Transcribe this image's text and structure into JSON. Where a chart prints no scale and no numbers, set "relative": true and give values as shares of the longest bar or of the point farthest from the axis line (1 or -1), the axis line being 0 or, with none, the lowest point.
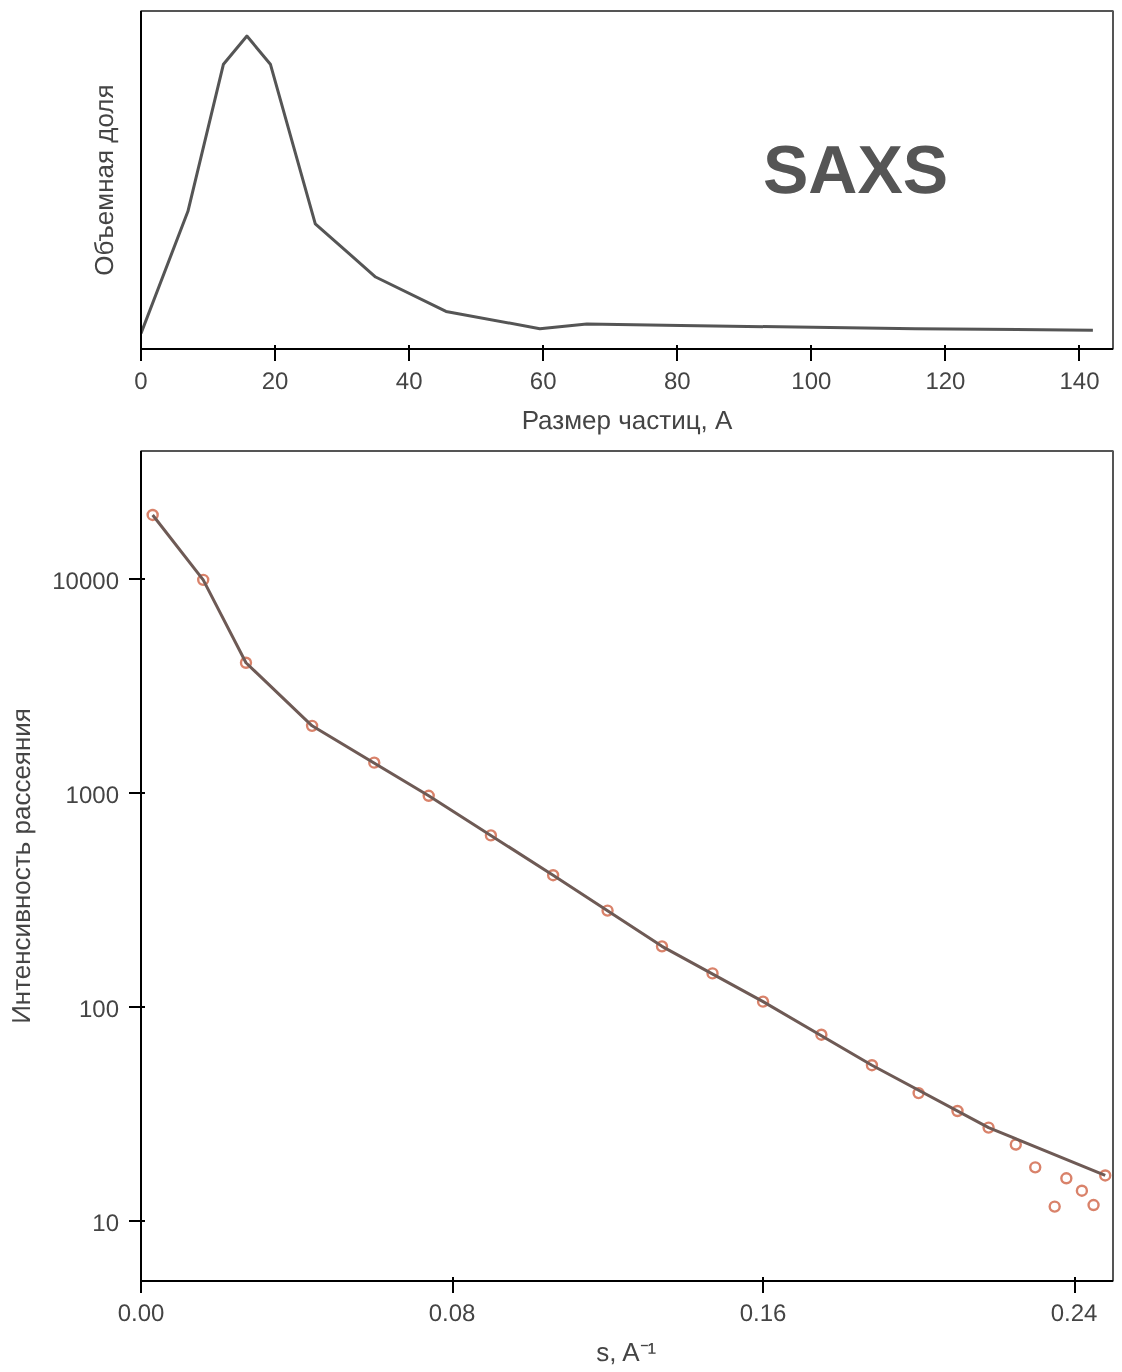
{
  "chart_data": [
    {
      "type": "line",
      "xlabel": "Размер частиц, А",
      "ylabel": "Объемная доля",
      "relative": true,
      "annotations": [
        "SAXS"
      ],
      "x": [
        0,
        7,
        12.3,
        15.8,
        19.3,
        26,
        35,
        45.5,
        59.5,
        66.5,
        80.5,
        115.5,
        142
      ],
      "series": [
        {
          "color": "#555555",
          "values": [
            0.05,
            0.44,
            0.91,
            1.0,
            0.91,
            0.4,
            0.23,
            0.12,
            0.065,
            0.08,
            0.075,
            0.065,
            0.06
          ]
        }
      ],
      "xlim": [
        0,
        145
      ],
      "xticks": [
        0,
        20,
        40,
        60,
        80,
        100,
        120,
        140
      ],
      "grid": false,
      "marker": "none",
      "line_style": "solid"
    },
    {
      "type": "line",
      "xlabel": "s, A⁻¹",
      "ylabel": "Интенсивность рассеяния",
      "log": "y",
      "xlim": [
        0,
        0.25
      ],
      "xticks": [
        {
          "value": 0,
          "label": "0.00"
        },
        0.08,
        0.16,
        0.24
      ],
      "ylim": [
        5.3,
        40000
      ],
      "yticks": [
        10,
        100,
        1000,
        10000
      ],
      "grid": false,
      "series": [
        {
          "type": "scatter",
          "marker": "circle",
          "color": "#d9826a",
          "x": [
            0.003,
            0.016,
            0.027,
            0.044,
            0.06,
            0.074,
            0.09,
            0.106,
            0.12,
            0.134,
            0.147,
            0.16,
            0.175,
            0.188,
            0.2,
            0.21,
            0.218,
            0.225,
            0.23,
            0.235,
            0.238,
            0.242,
            0.245,
            0.248
          ],
          "values": [
            20100,
            10000,
            4100,
            2080,
            1400,
            980,
            640,
            417,
            285,
            194,
            145,
            107,
            75,
            54,
            40,
            33,
            27.6,
            23,
            18,
            11.8,
            16,
            14,
            12,
            16.5
          ]
        },
        {
          "type": "line",
          "marker": "none",
          "line_style": "solid",
          "color": "#6e5a55",
          "x": [
            0.003,
            0.016,
            0.027,
            0.044,
            0.074,
            0.106,
            0.134,
            0.16,
            0.188,
            0.218,
            0.248
          ],
          "values": [
            20100,
            10000,
            4100,
            2080,
            980,
            417,
            194,
            107,
            54,
            27.6,
            16.5
          ]
        }
      ]
    }
  ]
}
